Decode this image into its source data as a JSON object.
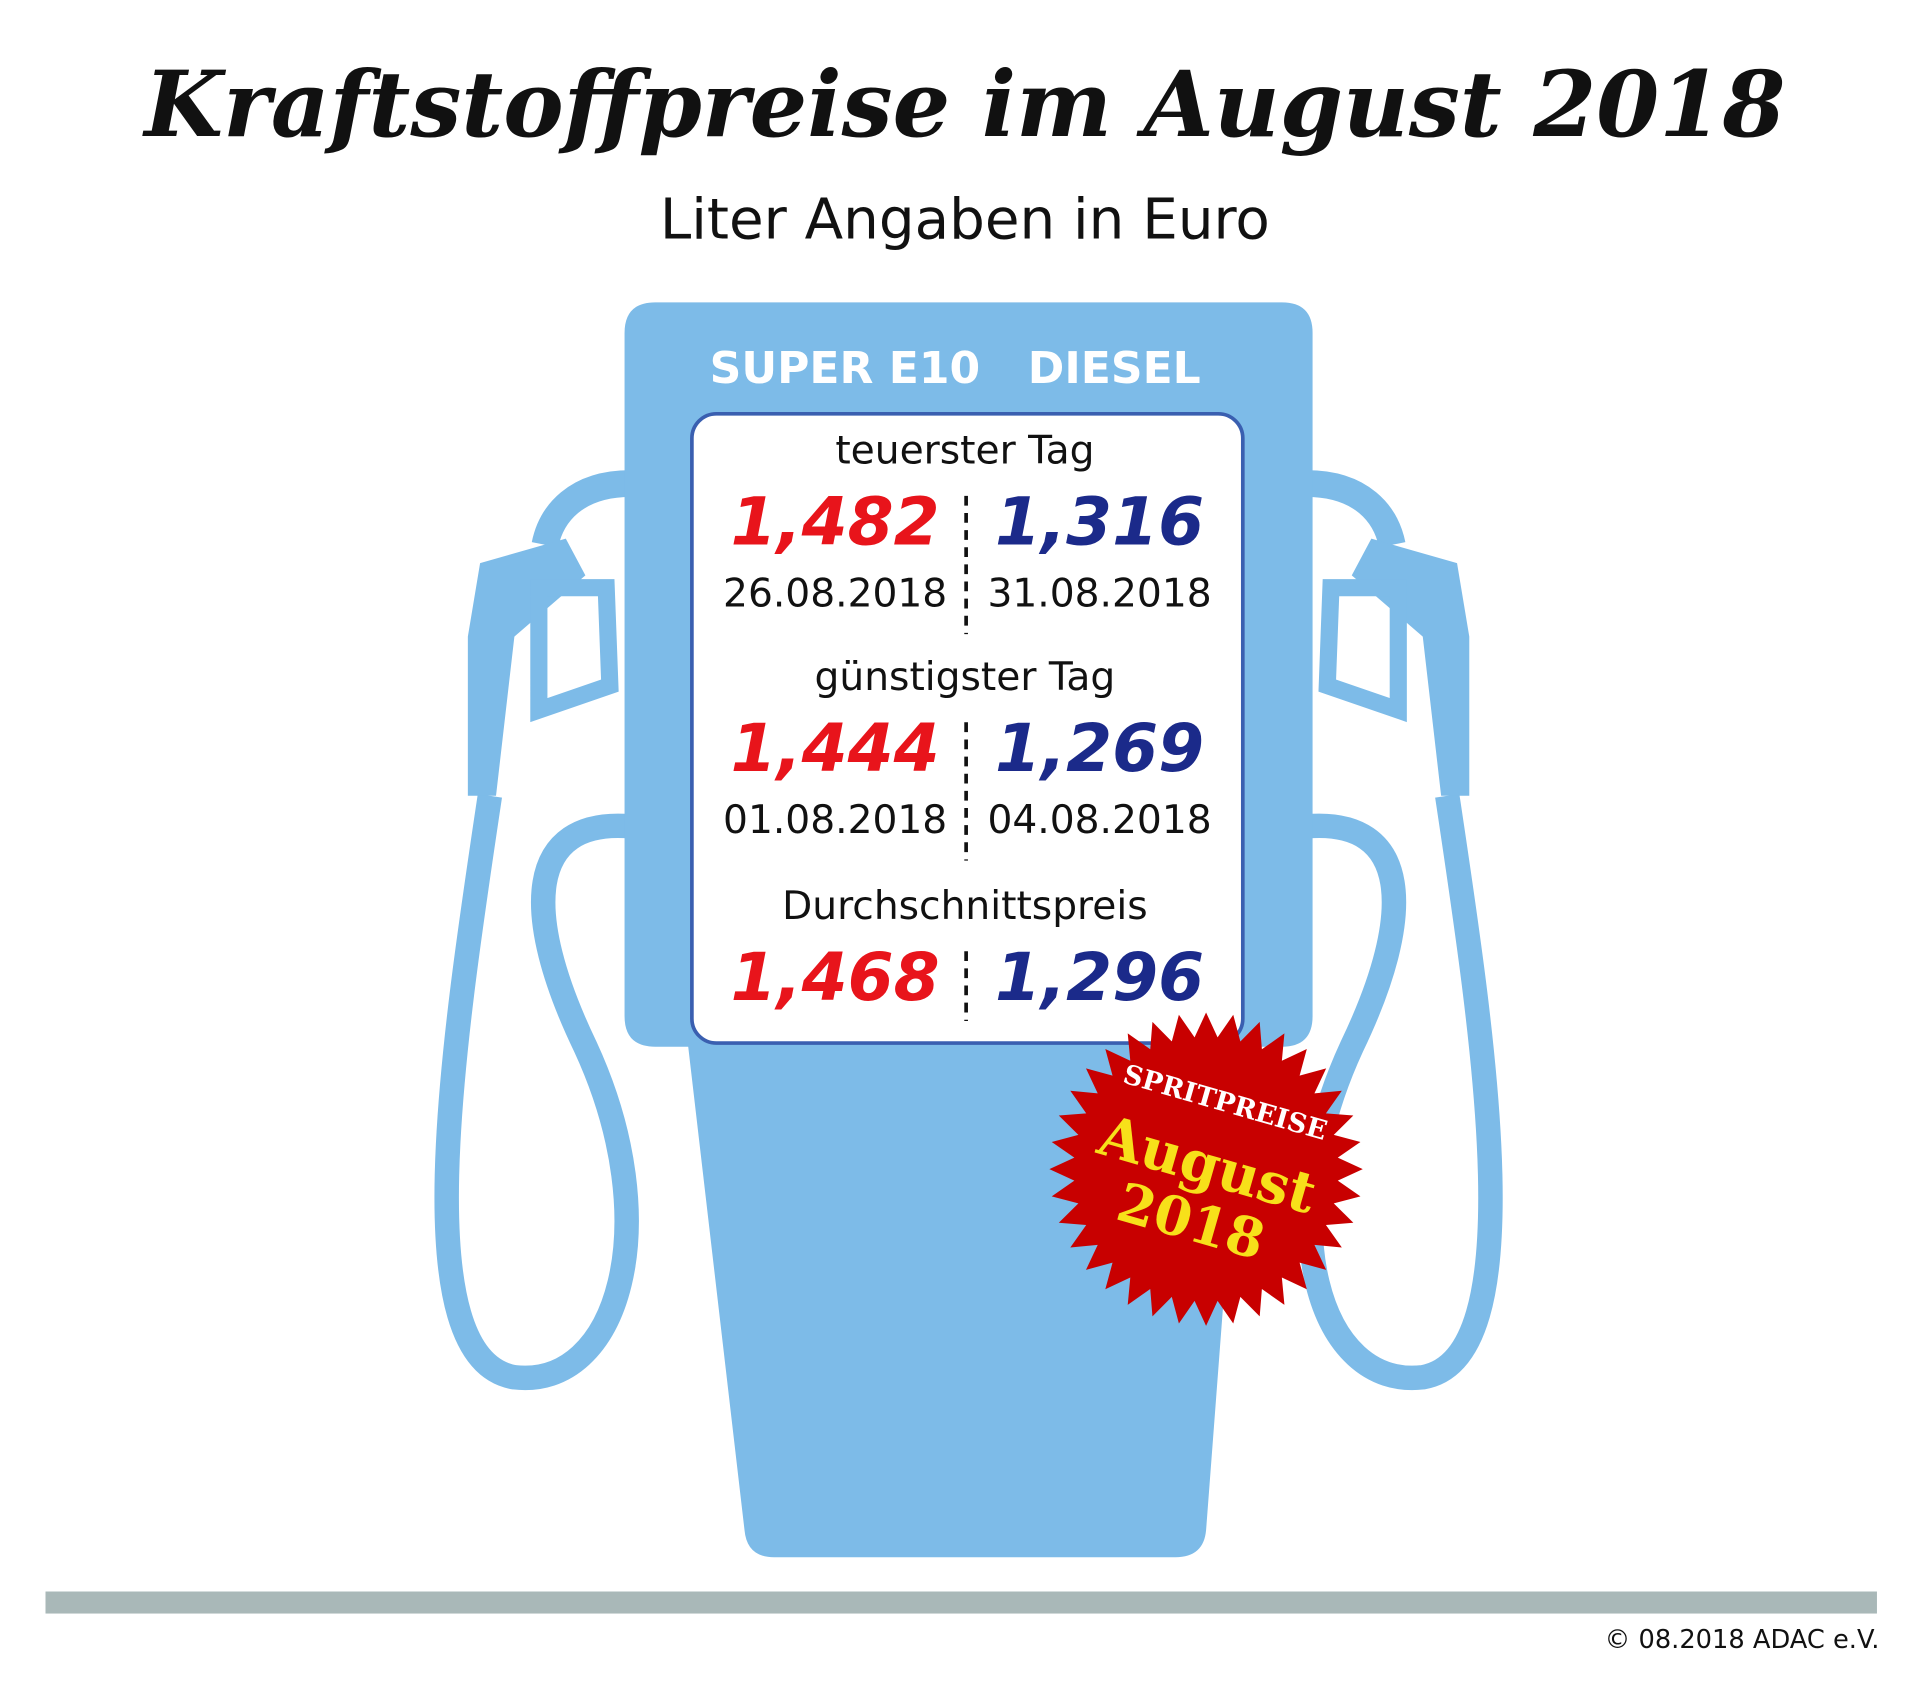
{
  "title": "Kraftstoffpreise im August 2018",
  "subtitle": "Liter Angaben in Euro",
  "columns": [
    "SUPER E10",
    "DIESEL"
  ],
  "sections": [
    {
      "label": "teuerster Tag",
      "values": [
        "1,482",
        "1,316"
      ],
      "dates": [
        "26.08.2018",
        "31.08.2018"
      ]
    },
    {
      "label": "günstigster Tag",
      "values": [
        "1,444",
        "1,269"
      ],
      "dates": [
        "01.08.2018",
        "04.08.2018"
      ]
    },
    {
      "label": "Durchschnittspreis",
      "values": [
        "1,468",
        "1,296"
      ]
    }
  ],
  "badge": {
    "top": "SPRITPREISE",
    "middle": "August",
    "bottom": "2018"
  },
  "footer": "© 08.2018  ADAC e.V."
}
